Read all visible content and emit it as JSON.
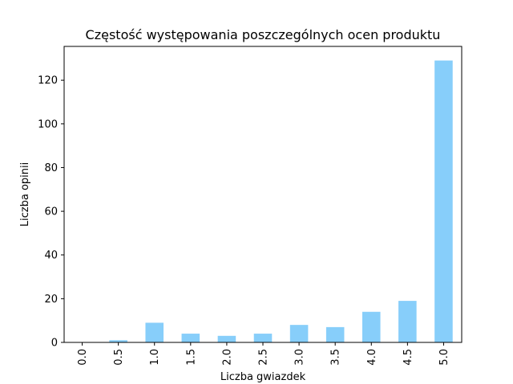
{
  "chart_data": {
    "type": "bar",
    "title": "Częstość występowania poszczególnych ocen produktu",
    "xlabel": "Liczba gwiazdek",
    "ylabel": "Liczba opinii",
    "categories": [
      "0.0",
      "0.5",
      "1.0",
      "1.5",
      "2.0",
      "2.5",
      "3.0",
      "3.5",
      "4.0",
      "4.5",
      "5.0"
    ],
    "values": [
      0,
      1,
      9,
      4,
      3,
      4,
      8,
      7,
      14,
      19,
      129
    ],
    "ylim": [
      0,
      135.45
    ],
    "yticks": [
      "0",
      "20",
      "40",
      "60",
      "80",
      "100",
      "120"
    ],
    "ytick_values": [
      0,
      20,
      40,
      60,
      80,
      100,
      120
    ],
    "grid": false,
    "bar_color": "#87cefa",
    "xtick_rotation": "vertical"
  }
}
